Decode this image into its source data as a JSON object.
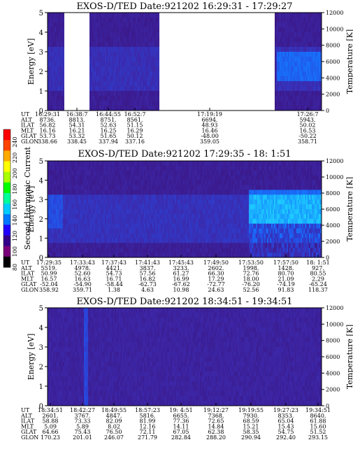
{
  "colorbar": {
    "label": "Second Harmonic Current",
    "ticks": [
      "240",
      "220",
      "200",
      "180",
      "160",
      "140",
      "120",
      "100",
      "80"
    ],
    "colors": [
      "#000000",
      "#7a007a",
      "#33008a",
      "#2200ff",
      "#0077ff",
      "#00ccff",
      "#00ff99",
      "#00ff00",
      "#aaff00",
      "#ffff00",
      "#ffaa00",
      "#ff4400",
      "#ff0000"
    ]
  },
  "chart_data": [
    {
      "type": "heatmap",
      "title": "EXOS-D/TED   Date:921202  16:29:31 - 17:29:27",
      "ylabel": "Energy [eV]",
      "ylabel_right": "Temperature [K]",
      "ylim": [
        0,
        5
      ],
      "ylim_right": [
        0,
        12000
      ],
      "yticks": [
        "0",
        "1",
        "2",
        "3",
        "4",
        "5"
      ],
      "yticks_right": [
        "0",
        "2000",
        "4000",
        "6000",
        "8000",
        "10000",
        "12000"
      ],
      "xticks": [
        "16:29:31",
        "16:38:7",
        "16:44:55",
        "16:52:7",
        "17:19:19",
        "17:26:7"
      ],
      "ephemeris": {
        "row_labels": [
          "UT",
          "ALT",
          "ILAT",
          "MLT",
          "GLAT",
          "GLON"
        ],
        "columns": [
          [
            "16:29:31",
            "8736.",
            "56.82",
            "16.16",
            "53.73",
            "338.66"
          ],
          [
            "16:38:7",
            "8813.",
            "54.31",
            "16.21",
            "53.32",
            "338.45"
          ],
          [
            "16:44:55",
            "8751.",
            "52.63",
            "16.25",
            "51.65",
            "337.94"
          ],
          [
            "16:52:7",
            "8561.",
            "51.15",
            "16.29",
            "50.12",
            "337.16"
          ],
          [
            "17:19:19",
            "6694.",
            "48.93",
            "16.46",
            "-48.00",
            "359.05"
          ],
          [
            "17:26:7",
            "5943.",
            "50.02",
            "16.53",
            "-50.22",
            "358.71"
          ]
        ]
      }
    },
    {
      "type": "heatmap",
      "title": "EXOS-D/TED   Date:921202  17:29:35 - 18: 1:51",
      "ylabel": "Energy [eV]",
      "ylabel_right": "Temperature [K]",
      "ylim": [
        0,
        5
      ],
      "ylim_right": [
        0,
        12000
      ],
      "yticks": [
        "0",
        "1",
        "2",
        "3",
        "4",
        "5"
      ],
      "yticks_right": [
        "0",
        "2000",
        "4000",
        "6000",
        "8000",
        "10000",
        "12000"
      ],
      "xticks": [
        "17:29:35",
        "17:33:43",
        "17:37:43",
        "17:41:43",
        "17:45:43",
        "17:49:50",
        "17:53:50",
        "17:57:50",
        "18: 1:51"
      ],
      "ephemeris": {
        "row_labels": [
          "UT",
          "ALT",
          "ILAT",
          "MLT",
          "GLAT",
          "GLON"
        ],
        "columns": [
          [
            "17:29:35",
            "5519.",
            "50.99",
            "16.57",
            "-52.04",
            "358.92"
          ],
          [
            "17:33:43",
            "4978.",
            "52.60",
            "16.63",
            "-54.90",
            "359.71"
          ],
          [
            "17:37:43",
            "4421.",
            "54.73",
            "16.71",
            "-58.44",
            "1.38"
          ],
          [
            "17:41:43",
            "3837.",
            "57.56",
            "16.82",
            "-62.73",
            "4.63"
          ],
          [
            "17:45:43",
            "3233.",
            "61.27",
            "16.99",
            "-67.62",
            "10.98"
          ],
          [
            "17:49:50",
            "2602.",
            "66.30",
            "17.29",
            "-72.77",
            "24.63"
          ],
          [
            "17:53:50",
            "1998.",
            "72.76",
            "18.00",
            "-76.20",
            "52.56"
          ],
          [
            "17:57:50",
            "1428.",
            "80.70",
            "21.09",
            "-74.19",
            "91.83"
          ],
          [
            "18: 1:51",
            "927.",
            "80.55",
            "2.29",
            "-65.24",
            "118.37"
          ]
        ]
      }
    },
    {
      "type": "heatmap",
      "title": "EXOS-D/TED   Date:921202  18:34:51 - 19:34:51",
      "ylabel": "Energy [eV]",
      "ylabel_right": "Temperature [K]",
      "ylim": [
        0,
        5
      ],
      "ylim_right": [
        0,
        12000
      ],
      "yticks": [
        "0",
        "1",
        "2",
        "3",
        "4",
        "5"
      ],
      "yticks_right": [
        "0",
        "2000",
        "4000",
        "6000",
        "8000",
        "10000",
        "12000"
      ],
      "xticks": [
        "18:34:51",
        "18:42:27",
        "18:49:55",
        "18:57:23",
        "19: 4:51",
        "19:12:27",
        "19:19:55",
        "19:27:23",
        "19:34:51"
      ],
      "ephemeris": {
        "row_labels": [
          "UT",
          "ALT",
          "ILAT",
          "MLT",
          "GLAT",
          "GLON"
        ],
        "columns": [
          [
            "18:34:51",
            "2601.",
            "58.88",
            "5.09",
            "64.66",
            "170.23"
          ],
          [
            "18:42:27",
            "3767.",
            "73.33",
            "5.89",
            "75.43",
            "201.01"
          ],
          [
            "18:49:55",
            "4847.",
            "82.09",
            "8.02",
            "76.50",
            "246.07"
          ],
          [
            "18:57:23",
            "5816.",
            "81.99",
            "12.16",
            "72.11",
            "271.79"
          ],
          [
            "19: 4:51",
            "6655.",
            "77.36",
            "14.11",
            "67.05",
            "282.84"
          ],
          [
            "19:12:27",
            "7368.",
            "72.65",
            "14.84",
            "62.38",
            "288.20"
          ],
          [
            "19:19:55",
            "7930.",
            "68.59",
            "15.21",
            "58.35",
            "290.94"
          ],
          [
            "19:27:23",
            "8353.",
            "65.04",
            "15.43",
            "54.75",
            "292.40"
          ],
          [
            "19:34:51",
            "8640.",
            "61.88",
            "15.60",
            "51.52",
            "293.15"
          ]
        ]
      }
    }
  ]
}
